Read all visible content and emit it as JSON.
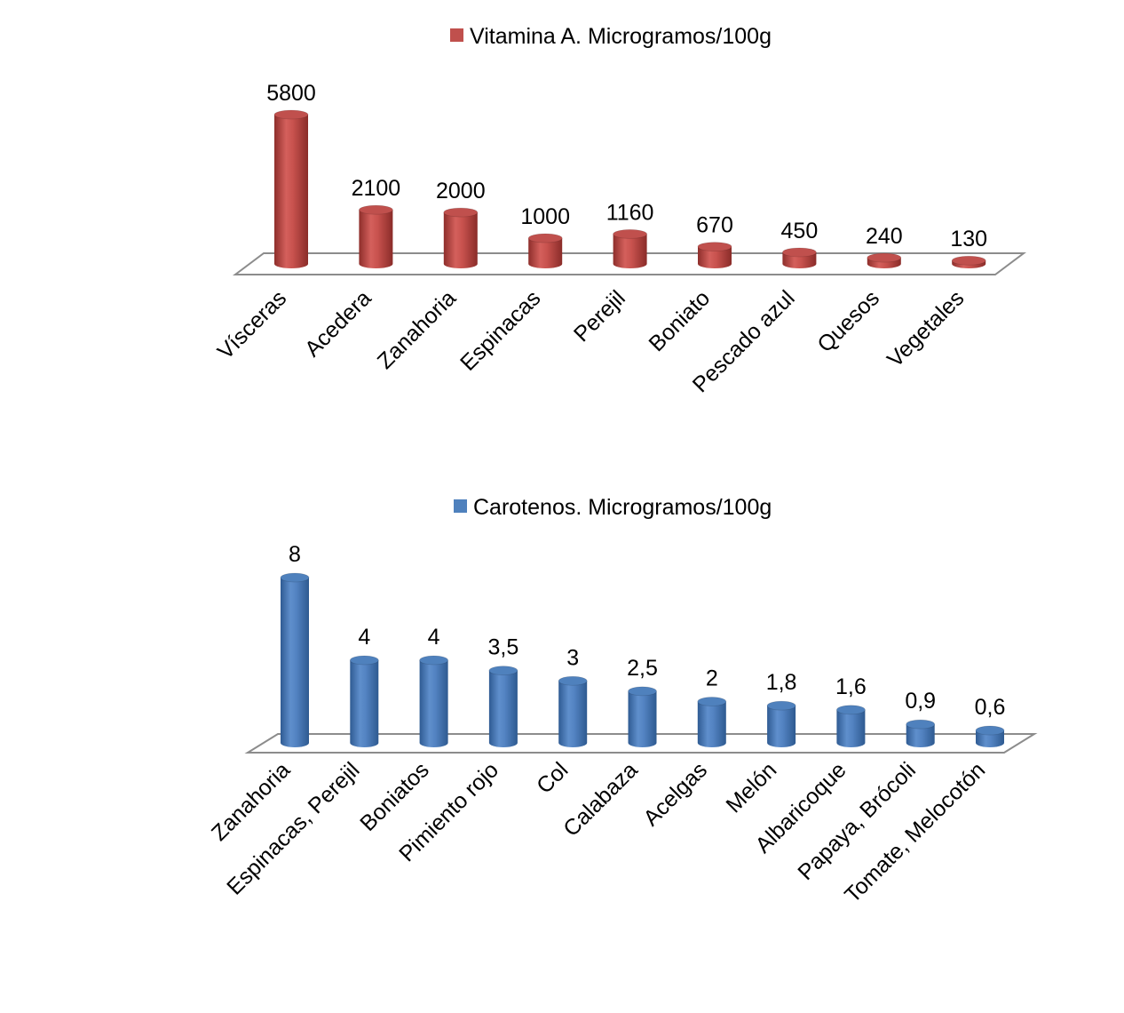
{
  "colors": {
    "vitamin_a": "#c0504d",
    "carotenos": "#4f81bd",
    "floor": "#ffffff",
    "floor_edge": "#8c8c8c"
  },
  "chart_data": [
    {
      "type": "bar",
      "title": "",
      "legend": "Vitamina A. Microgramos/100g",
      "legend_position": "top",
      "xlabel": "",
      "ylabel": "",
      "ylim": [
        0,
        5800
      ],
      "categories": [
        "Vísceras",
        "Acedera",
        "Zanahoria",
        "Espinacas",
        "Perejil",
        "Boniato",
        "Pescado azul",
        "Quesos",
        "Vegetales"
      ],
      "values": [
        5800,
        2100,
        2000,
        1000,
        1160,
        670,
        450,
        240,
        130
      ],
      "data_labels": [
        "5800",
        "2100",
        "2000",
        "1000",
        "1160",
        "670",
        "450",
        "240",
        "130"
      ],
      "grid": false
    },
    {
      "type": "bar",
      "title": "",
      "legend": "Carotenos. Microgramos/100g",
      "legend_position": "top",
      "xlabel": "",
      "ylabel": "",
      "ylim": [
        0,
        8
      ],
      "categories": [
        "Zanahoria",
        "Espinacas, Perejil",
        "Boniatos",
        "Pimiento rojo",
        "Col",
        "Calabaza",
        "Acelgas",
        "Melón",
        "Albaricoque",
        "Papaya, Brócoli",
        "Tomate, Melocotón"
      ],
      "values": [
        8,
        4,
        4,
        3.5,
        3,
        2.5,
        2,
        1.8,
        1.6,
        0.9,
        0.6
      ],
      "data_labels": [
        "8",
        "4",
        "4",
        "3,5",
        "3",
        "2,5",
        "2",
        "1,8",
        "1,6",
        "0,9",
        "0,6"
      ],
      "grid": false
    }
  ]
}
